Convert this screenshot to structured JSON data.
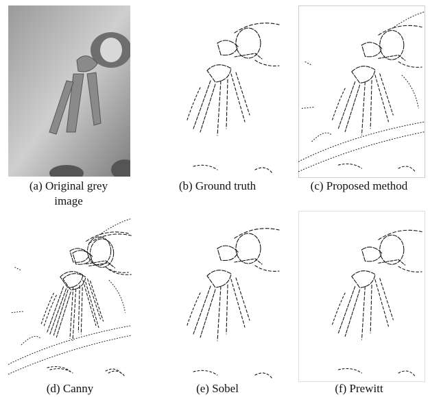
{
  "panels": [
    {
      "caption": "(a) Original grey image"
    },
    {
      "caption": "(b) Ground truth"
    },
    {
      "caption": "(c) Proposed method"
    },
    {
      "caption": "(d) Canny"
    },
    {
      "caption": "(e) Sobel"
    },
    {
      "caption": "(f) Prewitt"
    }
  ]
}
